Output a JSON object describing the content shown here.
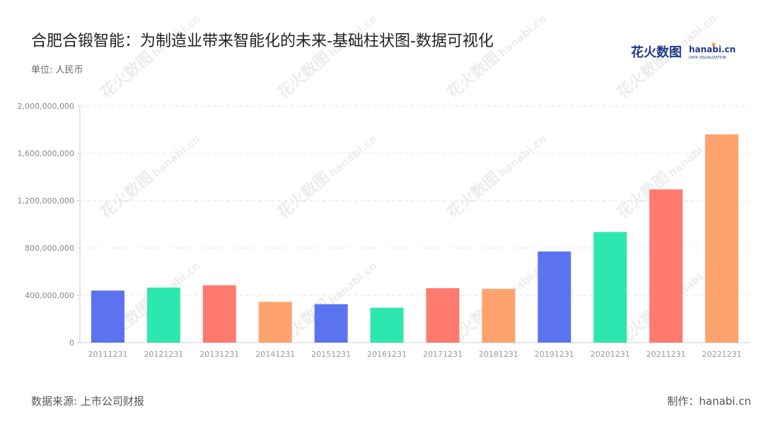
{
  "title": "合肥合锻智能：为制造业带来智能化的未来-基础柱状图-数据可视化",
  "unit_label": "单位: 人民币",
  "source_label": "数据来源: 上市公司财报",
  "maker_label": "制作：hanabi.cn",
  "logo": {
    "cn": "花火数图",
    "en": "hanabi.cn",
    "sub": "DATA VISUALIZATION",
    "colors": {
      "primary": "#1f3b8f",
      "accent": "#f5a623"
    }
  },
  "watermark": {
    "cn": "花火数图",
    "en": "hanabi.cn"
  },
  "chart_data": {
    "type": "bar",
    "categories": [
      "20111231",
      "20121231",
      "20131231",
      "20141231",
      "20151231",
      "20161231",
      "20171231",
      "20181231",
      "20191231",
      "20201231",
      "20211231",
      "20221231"
    ],
    "values": [
      440000000,
      465000000,
      485000000,
      345000000,
      325000000,
      295000000,
      460000000,
      455000000,
      770000000,
      935000000,
      1295000000,
      1760000000
    ],
    "colors": [
      "#5b73ee",
      "#2ee6b0",
      "#ff7a6e",
      "#ffa26e",
      "#5b73ee",
      "#2ee6b0",
      "#ff7a6e",
      "#ffa26e",
      "#5b73ee",
      "#2ee6b0",
      "#ff7a6e",
      "#ffa26e"
    ],
    "yticks": [
      "0",
      "400,000,000",
      "800,000,000",
      "1,200,000,000",
      "1,600,000,000",
      "2,000,000,000"
    ],
    "ylim": [
      0,
      2000000000
    ],
    "grid": true,
    "legend": "none"
  }
}
